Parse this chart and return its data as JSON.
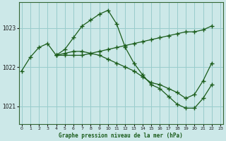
{
  "title": "Graphe pression niveau de la mer (hPa)",
  "bg_color": "#cce8e8",
  "grid_color": "#99cccc",
  "line_color": "#1a5c1a",
  "ylim": [
    1020.55,
    1023.65
  ],
  "yticks": [
    1021,
    1022,
    1023
  ],
  "xlim": [
    -0.3,
    23.3
  ],
  "xticks": [
    0,
    1,
    2,
    3,
    4,
    5,
    6,
    7,
    8,
    9,
    10,
    11,
    12,
    13,
    14,
    15,
    16,
    17,
    18,
    19,
    20,
    21,
    22,
    23
  ],
  "curve1_x": [
    0,
    1,
    2,
    3,
    4,
    5,
    6,
    7,
    8,
    9,
    10,
    11,
    12,
    13,
    14,
    15,
    16,
    17,
    18,
    19,
    20,
    21,
    22
  ],
  "curve1_y": [
    1021.9,
    1022.25,
    1022.5,
    1022.6,
    1022.3,
    1022.3,
    1022.3,
    1022.3,
    1022.35,
    1022.4,
    1022.45,
    1022.5,
    1022.55,
    1022.6,
    1022.65,
    1022.7,
    1022.75,
    1022.8,
    1022.85,
    1022.9,
    1022.9,
    1022.95,
    1023.05
  ],
  "curve2_x": [
    4,
    5,
    6,
    7,
    8,
    9,
    10,
    11,
    12,
    13,
    14,
    15,
    16,
    17,
    18,
    19,
    20,
    21,
    22
  ],
  "curve2_y": [
    1022.3,
    1022.45,
    1022.75,
    1023.05,
    1023.2,
    1023.35,
    1023.45,
    1023.1,
    1022.5,
    1022.1,
    1021.8,
    1021.55,
    1021.45,
    1021.25,
    1021.05,
    1020.95,
    1020.95,
    1021.2,
    1021.55
  ],
  "curve3_x": [
    4,
    5,
    6,
    7,
    8,
    9,
    10,
    11,
    12,
    13,
    14,
    15,
    16,
    17,
    18,
    19,
    20,
    21,
    22
  ],
  "curve3_y": [
    1022.3,
    1022.35,
    1022.4,
    1022.4,
    1022.35,
    1022.3,
    1022.2,
    1022.1,
    1022.0,
    1021.9,
    1021.75,
    1021.6,
    1021.55,
    1021.45,
    1021.35,
    1021.2,
    1021.3,
    1021.65,
    1022.1
  ]
}
